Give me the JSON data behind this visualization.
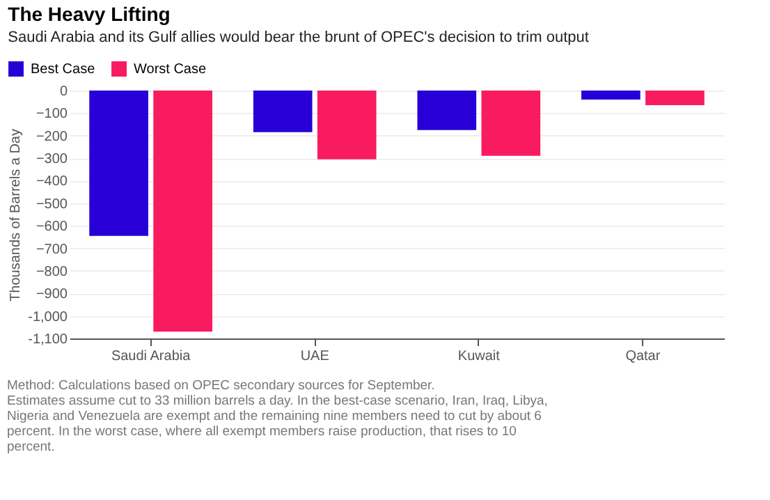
{
  "chart_data": {
    "type": "bar",
    "title": "The Heavy Lifting",
    "subtitle": "Saudi Arabia and its Gulf allies would bear the brunt of OPEC's decision to trim output",
    "ylabel": "Thousands of Barrels a Day",
    "categories": [
      "Saudi Arabia",
      "UAE",
      "Kuwait",
      "Qatar"
    ],
    "series": [
      {
        "name": "Best Case",
        "color": "#2800d7",
        "values": [
          -645,
          -185,
          -175,
          -40
        ]
      },
      {
        "name": "Worst Case",
        "color": "#f81b5f",
        "values": [
          -1070,
          -305,
          -290,
          -65
        ]
      }
    ],
    "ylim": [
      -1100,
      0
    ],
    "yticks": [
      0,
      -100,
      -200,
      -300,
      -400,
      -500,
      -600,
      -700,
      -800,
      -900,
      {
        "value": -1000,
        "label": "-1,000"
      },
      {
        "value": -1100,
        "label": "-1,100"
      }
    ],
    "grid": "y",
    "legend": "top left",
    "annotations": [
      "Method: Calculations based on OPEC secondary sources for September.",
      "Estimates assume cut to 33 million barrels a day. In the best-case scenario, Iran, Iraq, Libya,",
      "Nigeria and Venezuela are exempt and the remaining nine members need to cut by about 6",
      "percent. In the worst case, where all exempt members raise production, that rises to 10",
      "percent."
    ]
  }
}
